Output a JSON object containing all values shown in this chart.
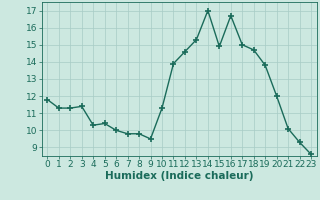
{
  "x": [
    0,
    1,
    2,
    3,
    4,
    5,
    6,
    7,
    8,
    9,
    10,
    11,
    12,
    13,
    14,
    15,
    16,
    17,
    18,
    19,
    20,
    21,
    22,
    23
  ],
  "y": [
    11.8,
    11.3,
    11.3,
    11.4,
    10.3,
    10.4,
    10.0,
    9.8,
    9.8,
    9.5,
    11.3,
    13.9,
    14.6,
    15.3,
    17.0,
    14.9,
    16.7,
    15.0,
    14.7,
    13.8,
    12.0,
    10.1,
    9.3,
    8.6
  ],
  "line_color": "#1a6b5a",
  "marker": "+",
  "marker_size": 5,
  "bg_color": "#cce8e0",
  "grid_color": "#a8ccc6",
  "xlabel": "Humidex (Indice chaleur)",
  "ylim": [
    8.5,
    17.5
  ],
  "xlim": [
    -0.5,
    23.5
  ],
  "yticks": [
    9,
    10,
    11,
    12,
    13,
    14,
    15,
    16,
    17
  ],
  "xticks": [
    0,
    1,
    2,
    3,
    4,
    5,
    6,
    7,
    8,
    9,
    10,
    11,
    12,
    13,
    14,
    15,
    16,
    17,
    18,
    19,
    20,
    21,
    22,
    23
  ],
  "tick_label_fontsize": 6.5,
  "xlabel_fontsize": 7.5,
  "linewidth": 1.0,
  "marker_linewidth": 1.2
}
